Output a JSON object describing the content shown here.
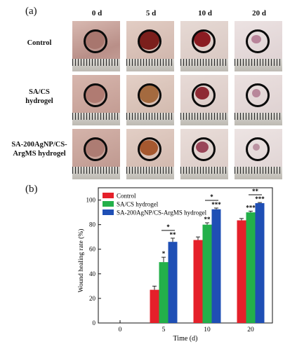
{
  "panel_a": {
    "label": "(a)",
    "columns": [
      "0 d",
      "5 d",
      "10 d",
      "20 d"
    ],
    "rows": [
      "Control",
      "SA/CS\nhydrogel",
      "SA-200AgNP/CS-\nArgMS hydrogel"
    ]
  },
  "panel_b": {
    "label": "(b)"
  },
  "chart_data": {
    "type": "bar",
    "title": "",
    "xlabel": "Time (d)",
    "ylabel": "Wound healing rate (%)",
    "ylim": [
      0,
      110
    ],
    "yticks": [
      0,
      20,
      40,
      60,
      80,
      100
    ],
    "categories": [
      "0",
      "5",
      "10",
      "20"
    ],
    "series": [
      {
        "name": "Control",
        "color": "#e5202a",
        "values": [
          0,
          27,
          67.5,
          83.5
        ],
        "errors": [
          0,
          3,
          2.5,
          1.5
        ],
        "marks": [
          "",
          "",
          "",
          ""
        ]
      },
      {
        "name": "SA/CS hydrogel",
        "color": "#23b04a",
        "values": [
          0,
          49.5,
          80,
          90
        ],
        "errors": [
          0,
          4,
          1.5,
          1
        ],
        "marks": [
          "",
          "*",
          "**",
          "***"
        ]
      },
      {
        "name": "SA-200AgNP/CS-ArgMS hydrogel",
        "color": "#1f4fb5",
        "values": [
          0,
          66,
          92.5,
          97.5
        ],
        "errors": [
          0,
          3,
          1,
          0.5
        ],
        "marks": [
          "",
          "**",
          "***",
          "***"
        ]
      }
    ],
    "comparisons": [
      {
        "category_index": 1,
        "label": "*"
      },
      {
        "category_index": 2,
        "label": "*"
      },
      {
        "category_index": 3,
        "label": "**"
      }
    ],
    "legend": "top-left"
  }
}
